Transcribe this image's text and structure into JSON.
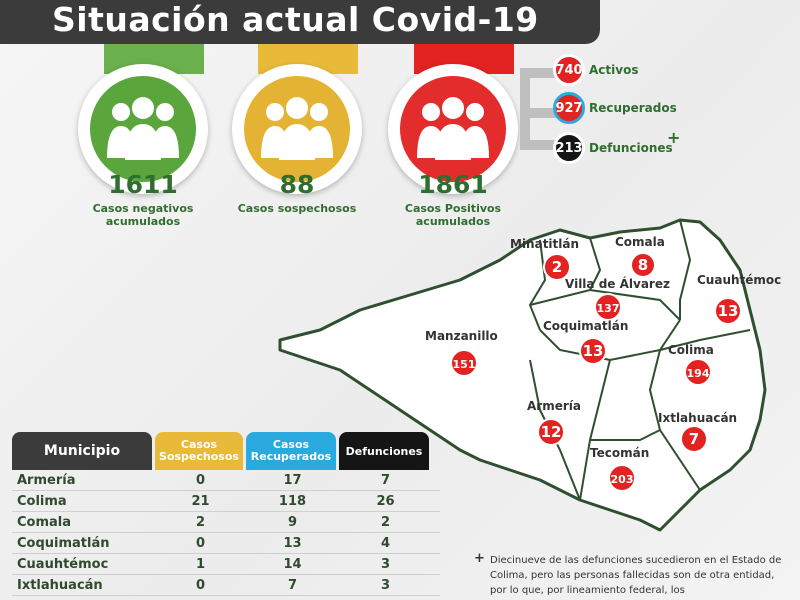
{
  "title": "Situación actual Covid-19",
  "stats": [
    {
      "value": "1611",
      "label_line1": "Casos negativos",
      "label_line2": "acumulados",
      "color": "#5aa63c",
      "tab_color": "#6ab04c"
    },
    {
      "value": "88",
      "label_line1": "Casos sospechosos",
      "label_line2": "",
      "color": "#e5b334",
      "tab_color": "#e9b93a"
    },
    {
      "value": "1861",
      "label_line1": "Casos Positivos",
      "label_line2": "acumulados",
      "color": "#e32d2d",
      "tab_color": "#e32222"
    }
  ],
  "status": {
    "activos": {
      "value": "740",
      "label": "Activos",
      "color": "#e32222"
    },
    "recuperados": {
      "value": "927",
      "label": "Recuperados",
      "color": "#e32222",
      "ring": "#29a9de"
    },
    "defunciones": {
      "value": "213",
      "label": "Defunciones",
      "color": "#151515"
    },
    "cross": "+"
  },
  "map": {
    "municipios": [
      {
        "name": "Minatitlán",
        "value": "2"
      },
      {
        "name": "Comala",
        "value": "8"
      },
      {
        "name": "Villa de Álvarez",
        "value": "137"
      },
      {
        "name": "Cuauhtémoc",
        "value": "13"
      },
      {
        "name": "Manzanillo",
        "value": "151"
      },
      {
        "name": "Coquimatlán",
        "value": "13"
      },
      {
        "name": "Colima",
        "value": "194"
      },
      {
        "name": "Armería",
        "value": "12"
      },
      {
        "name": "Ixtlahuacán",
        "value": "7"
      },
      {
        "name": "Tecomán",
        "value": "203"
      }
    ]
  },
  "table": {
    "headers": {
      "municipio": "Municipio",
      "sospechosos_1": "Casos",
      "sospechosos_2": "Sospechosos",
      "recuperados_1": "Casos",
      "recuperados_2": "Recuperados",
      "defunciones": "Defunciones"
    },
    "rows": [
      {
        "municipio": "Armería",
        "sospechosos": "0",
        "recuperados": "17",
        "defunciones": "7"
      },
      {
        "municipio": "Colima",
        "sospechosos": "21",
        "recuperados": "118",
        "defunciones": "26"
      },
      {
        "municipio": "Comala",
        "sospechosos": "2",
        "recuperados": "9",
        "defunciones": "2"
      },
      {
        "municipio": "Coquimatlán",
        "sospechosos": "0",
        "recuperados": "13",
        "defunciones": "4"
      },
      {
        "municipio": "Cuauhtémoc",
        "sospechosos": "1",
        "recuperados": "14",
        "defunciones": "3"
      },
      {
        "municipio": "Ixtlahuacán",
        "sospechosos": "0",
        "recuperados": "7",
        "defunciones": "3"
      }
    ]
  },
  "footnote": {
    "mark": "+",
    "text": "Diecinueve de las defunciones sucedieron en el Estado de Colima, pero las personas fallecidas son de otra entidad, por lo que, por lineamiento federal, los"
  }
}
